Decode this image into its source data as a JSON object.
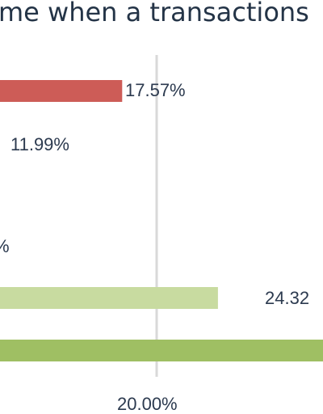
{
  "chart_data": {
    "type": "bar",
    "orientation": "horizontal",
    "title": "me when a transactions",
    "series": [
      {
        "data_label": "17.57%",
        "value": 17.57,
        "color": "#cd5c57"
      },
      {
        "data_label": "11.99%",
        "value": 11.99,
        "color": "#d7d7d7"
      },
      {
        "data_label": "%",
        "value": null,
        "color": "#d7d7d7"
      },
      {
        "data_label": "24.32",
        "value": 24.32,
        "color": "#c8dba0"
      },
      {
        "data_label": "",
        "value": null,
        "color": "#9fbf63"
      }
    ],
    "x_ticks": [
      "20.00%"
    ],
    "gridlines": [
      20
    ],
    "grid": true
  }
}
